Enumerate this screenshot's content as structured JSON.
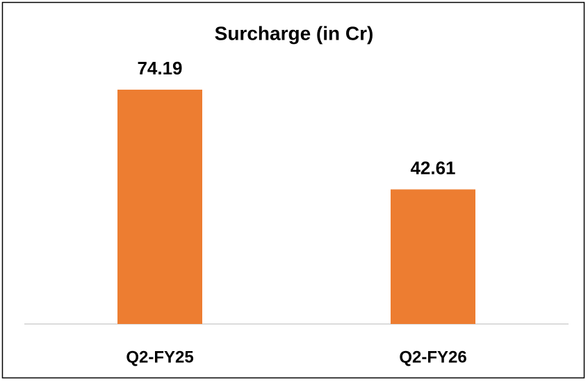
{
  "chart_data": {
    "type": "bar",
    "title": "Surcharge (in Cr)",
    "categories": [
      "Q2-FY25",
      "Q2-FY26"
    ],
    "values": [
      74.19,
      42.61
    ],
    "color": "#ed7d31"
  }
}
